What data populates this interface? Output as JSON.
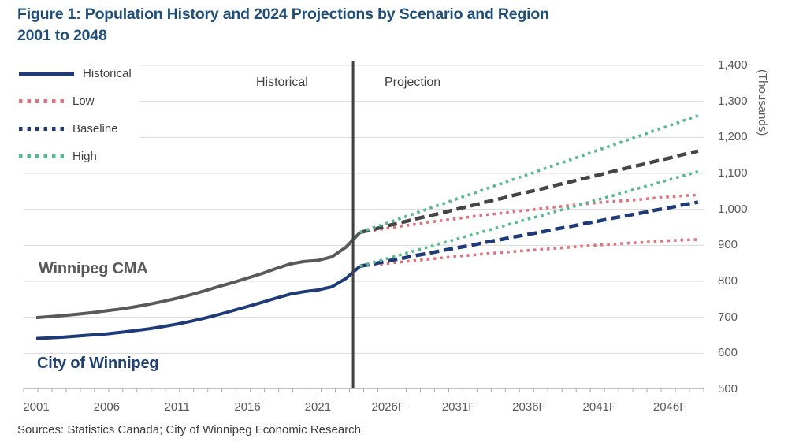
{
  "title": {
    "line1": "Figure 1: Population History and 2024 Projections by Scenario and Region",
    "line2": "2001 to 2048"
  },
  "legend": [
    {
      "label": "Historical",
      "color": "#1E3A78",
      "style": "solid"
    },
    {
      "label": "Low",
      "color": "#DE7380",
      "style": "dotted"
    },
    {
      "label": "Baseline",
      "color": "#1E3A78",
      "style": "dotted"
    },
    {
      "label": "High",
      "color": "#56BA8C",
      "style": "dotted"
    }
  ],
  "phase_labels": {
    "historical": "Historical",
    "projection": "Projection"
  },
  "region_labels": {
    "cma": "Winnipeg CMA",
    "city": "City of Winnipeg"
  },
  "y_axis": {
    "unit_label": "(Thousands)",
    "ticks": [
      {
        "label": "1,400",
        "value": 1400
      },
      {
        "label": "1,300",
        "value": 1300
      },
      {
        "label": "1,200",
        "value": 1200
      },
      {
        "label": "1,100",
        "value": 1100
      },
      {
        "label": "1,000",
        "value": 1000
      },
      {
        "label": "900",
        "value": 900
      },
      {
        "label": "800",
        "value": 800
      },
      {
        "label": "700",
        "value": 700
      },
      {
        "label": "600",
        "value": 600
      },
      {
        "label": "500",
        "value": 500
      }
    ]
  },
  "x_axis": {
    "ticks": [
      {
        "label": "2001",
        "year": 2001
      },
      {
        "label": "2006",
        "year": 2006
      },
      {
        "label": "2011",
        "year": 2011
      },
      {
        "label": "2016",
        "year": 2016
      },
      {
        "label": "2021",
        "year": 2021
      },
      {
        "label": "2026F",
        "year": 2026
      },
      {
        "label": "2031F",
        "year": 2031
      },
      {
        "label": "2036F",
        "year": 2036
      },
      {
        "label": "2041F",
        "year": 2041
      },
      {
        "label": "2046F",
        "year": 2046
      }
    ]
  },
  "source": "Sources: Statistics Canada; City of Winnipeg Economic Research",
  "chart_data": {
    "type": "line",
    "title": "Figure 1: Population History and 2024 Projections by Scenario and Region 2001 to 2048",
    "ylabel": "(Thousands)",
    "ylim": [
      500,
      1400
    ],
    "xlim": [
      2000,
      2049
    ],
    "grid": "horizontal",
    "legend_position": "top-left-inside",
    "divider_year": 2023.5,
    "series": [
      {
        "name": "Winnipeg CMA Historical",
        "region": "Winnipeg CMA",
        "scenario": "Historical",
        "color": "#595959",
        "line": "solid",
        "start_year": 2001,
        "values": [
          699,
          702,
          705,
          709,
          713,
          718,
          723,
          729,
          736,
          744,
          753,
          763,
          774,
          786,
          797,
          809,
          821,
          835,
          848,
          855,
          858,
          868,
          895,
          936
        ]
      },
      {
        "name": "City of Winnipeg Historical",
        "region": "City of Winnipeg",
        "scenario": "Historical",
        "color": "#1E3A78",
        "line": "solid",
        "start_year": 2001,
        "values": [
          641,
          643,
          645,
          648,
          651,
          654,
          658,
          663,
          668,
          674,
          681,
          689,
          698,
          708,
          719,
          730,
          741,
          753,
          764,
          771,
          776,
          785,
          808,
          842
        ]
      },
      {
        "name": "Winnipeg CMA Low",
        "region": "Winnipeg CMA",
        "scenario": "Low",
        "color": "#DE7380",
        "line": "dotted",
        "start_year": 2024,
        "values": [
          936,
          942,
          948,
          954,
          959,
          965,
          970,
          975,
          980,
          985,
          989,
          994,
          998,
          1003,
          1007,
          1011,
          1015,
          1019,
          1022,
          1025,
          1028,
          1032,
          1035,
          1038,
          1040
        ]
      },
      {
        "name": "City of Winnipeg Low",
        "region": "City of Winnipeg",
        "scenario": "Low",
        "color": "#DE7380",
        "line": "dotted",
        "start_year": 2024,
        "values": [
          842,
          846,
          850,
          854,
          858,
          862,
          866,
          870,
          873,
          877,
          880,
          883,
          886,
          889,
          892,
          895,
          898,
          901,
          903,
          906,
          908,
          911,
          913,
          915,
          916
        ]
      },
      {
        "name": "Winnipeg CMA Baseline",
        "region": "Winnipeg CMA",
        "scenario": "Baseline",
        "color": "#454545",
        "line": "dashed",
        "start_year": 2024,
        "values": [
          936,
          945,
          955,
          964,
          974,
          983,
          992,
          1002,
          1011,
          1021,
          1030,
          1040,
          1049,
          1058,
          1068,
          1077,
          1087,
          1096,
          1106,
          1115,
          1124,
          1134,
          1143,
          1153,
          1162
        ]
      },
      {
        "name": "City of Winnipeg Baseline",
        "region": "City of Winnipeg",
        "scenario": "Baseline",
        "color": "#1E3A78",
        "line": "dashed",
        "start_year": 2024,
        "values": [
          842,
          849,
          857,
          864,
          872,
          879,
          887,
          894,
          901,
          909,
          916,
          924,
          931,
          938,
          946,
          953,
          961,
          968,
          976,
          983,
          990,
          998,
          1005,
          1013,
          1020
        ]
      },
      {
        "name": "Winnipeg CMA High",
        "region": "Winnipeg CMA",
        "scenario": "High",
        "color": "#56BA8C",
        "line": "dotted",
        "start_year": 2024,
        "values": [
          936,
          950,
          963,
          977,
          990,
          1004,
          1017,
          1031,
          1044,
          1058,
          1071,
          1085,
          1098,
          1112,
          1125,
          1139,
          1152,
          1166,
          1179,
          1193,
          1206,
          1220,
          1233,
          1247,
          1260
        ]
      },
      {
        "name": "City of Winnipeg High",
        "region": "City of Winnipeg",
        "scenario": "High",
        "color": "#56BA8C",
        "line": "dotted",
        "start_year": 2024,
        "values": [
          842,
          853,
          864,
          875,
          886,
          897,
          908,
          919,
          930,
          941,
          952,
          963,
          974,
          984,
          995,
          1006,
          1017,
          1028,
          1039,
          1050,
          1061,
          1072,
          1083,
          1094,
          1105
        ]
      }
    ]
  }
}
